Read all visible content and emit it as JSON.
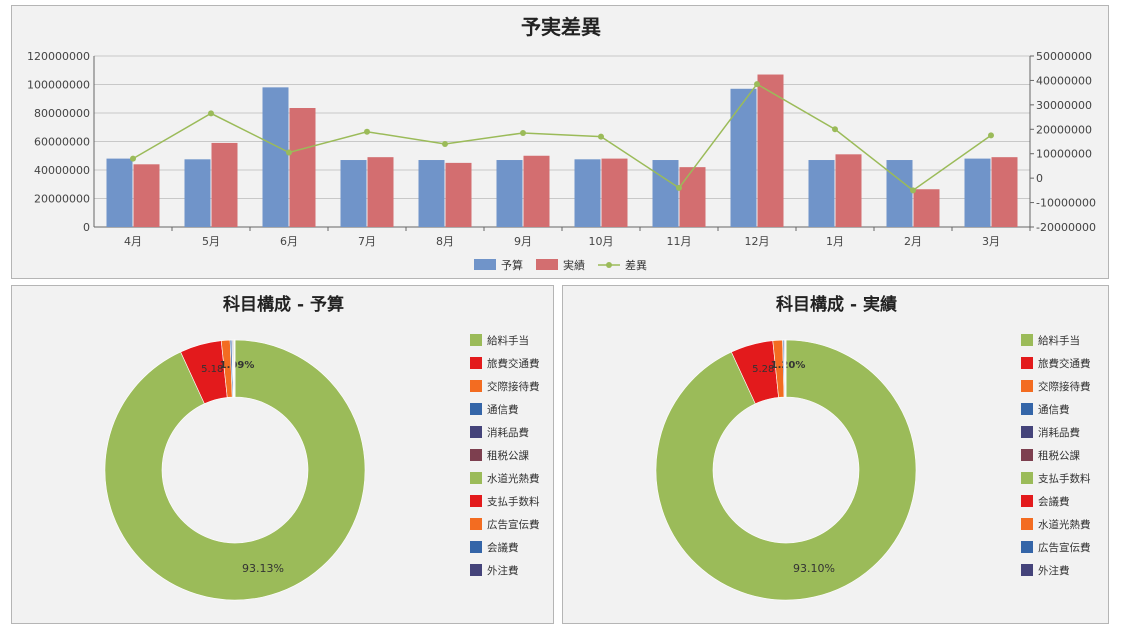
{
  "chart_data": [
    {
      "type": "bar",
      "title": "予実差異",
      "categories": [
        "4月",
        "5月",
        "6月",
        "7月",
        "8月",
        "9月",
        "10月",
        "11月",
        "12月",
        "1月",
        "2月",
        "3月"
      ],
      "series": [
        {
          "name": "予算",
          "type": "bar",
          "axis": "left",
          "color": "#7094c9",
          "values": [
            48000000,
            47500000,
            98000000,
            47000000,
            47000000,
            47000000,
            47500000,
            47000000,
            97000000,
            47000000,
            47000000,
            48000000
          ]
        },
        {
          "name": "実績",
          "type": "bar",
          "axis": "left",
          "color": "#d36e70",
          "values": [
            44000000,
            59000000,
            83500000,
            49000000,
            45000000,
            50000000,
            48000000,
            42000000,
            107000000,
            51000000,
            26500000,
            49000000
          ]
        },
        {
          "name": "差異",
          "type": "line",
          "axis": "right",
          "color": "#9bbb59",
          "values": [
            8000000,
            26500000,
            10500000,
            19000000,
            14000000,
            18500000,
            17000000,
            -4000000,
            38500000,
            20000000,
            -5000000,
            17500000
          ]
        }
      ],
      "ylim": [
        0,
        120000000
      ],
      "y_ticks": [
        "0",
        "20000000",
        "40000000",
        "60000000",
        "80000000",
        "100000000",
        "120000000"
      ],
      "y2lim": [
        -20000000,
        50000000
      ],
      "y2_ticks": [
        "-20000000",
        "-10000000",
        "0",
        "10000000",
        "20000000",
        "30000000",
        "40000000",
        "50000000"
      ],
      "legend_position": "bottom",
      "grid": true
    },
    {
      "type": "pie",
      "style": "donut",
      "title": "科目構成 - 予算",
      "legend_position": "right",
      "labels": [
        "給料手当",
        "旅費交通費",
        "交際接待費",
        "通信費",
        "消耗品費",
        "租税公課",
        "水道光熱費",
        "支払手数料",
        "広告宣伝費",
        "会議費",
        "外注費"
      ],
      "colors": [
        "#9bbb59",
        "#e31a1c",
        "#f36c21",
        "#3465a8",
        "#44437a",
        "#7d3f4f",
        "#9bbb59",
        "#e31a1c",
        "#f36c21",
        "#3465a8",
        "#44437a"
      ],
      "values": [
        93.13,
        5.18,
        1.09,
        0.2,
        0.1,
        0.1,
        0.1,
        0.05,
        0.02,
        0.02,
        0.01
      ],
      "data_labels": {
        "0": "93.13%",
        "1": "5.18%",
        "2": "1.09%"
      }
    },
    {
      "type": "pie",
      "style": "donut",
      "title": "科目構成 - 実績",
      "legend_position": "right",
      "labels": [
        "給料手当",
        "旅費交通費",
        "交際接待費",
        "通信費",
        "消耗品費",
        "租税公課",
        "支払手数料",
        "会議費",
        "水道光熱費",
        "広告宣伝費",
        "外注費"
      ],
      "colors": [
        "#9bbb59",
        "#e31a1c",
        "#f36c21",
        "#3465a8",
        "#44437a",
        "#7d3f4f",
        "#9bbb59",
        "#e31a1c",
        "#f36c21",
        "#3465a8",
        "#44437a"
      ],
      "values": [
        93.1,
        5.28,
        1.2,
        0.15,
        0.1,
        0.05,
        0.04,
        0.03,
        0.02,
        0.02,
        0.01
      ],
      "data_labels": {
        "0": "93.10%",
        "1": "5.28%",
        "2": "1.20%"
      }
    }
  ]
}
